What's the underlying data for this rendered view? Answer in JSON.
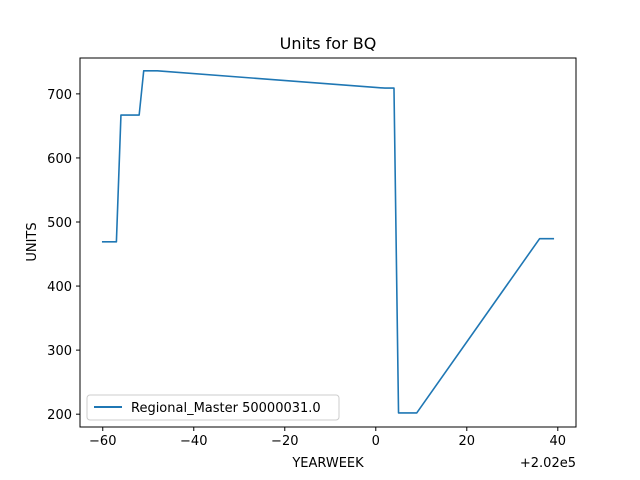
{
  "chart_data": {
    "type": "line",
    "title": "Units for BQ",
    "xlabel": "YEARWEEK",
    "ylabel": "UNITS",
    "x_offset_label": "+2.02e5",
    "xlim": [
      -65,
      44
    ],
    "ylim": [
      180,
      756
    ],
    "x_ticks": [
      -60,
      -40,
      -20,
      0,
      20,
      40
    ],
    "x_tick_labels": [
      "−60",
      "−40",
      "−20",
      "0",
      "20",
      "40"
    ],
    "y_ticks": [
      200,
      300,
      400,
      500,
      600,
      700
    ],
    "y_tick_labels": [
      "200",
      "300",
      "400",
      "500",
      "600",
      "700"
    ],
    "grid": false,
    "legend_position": "lower-left",
    "series": [
      {
        "name": "Regional_Master 50000031.0",
        "color": "#1f77b4",
        "x": [
          -60,
          -57,
          -56,
          -52,
          -51,
          -48,
          0,
          2,
          4,
          5,
          9,
          36,
          39
        ],
        "y": [
          469,
          469,
          667,
          667,
          736,
          736,
          710,
          709,
          709,
          202,
          202,
          474,
          474
        ]
      }
    ]
  }
}
